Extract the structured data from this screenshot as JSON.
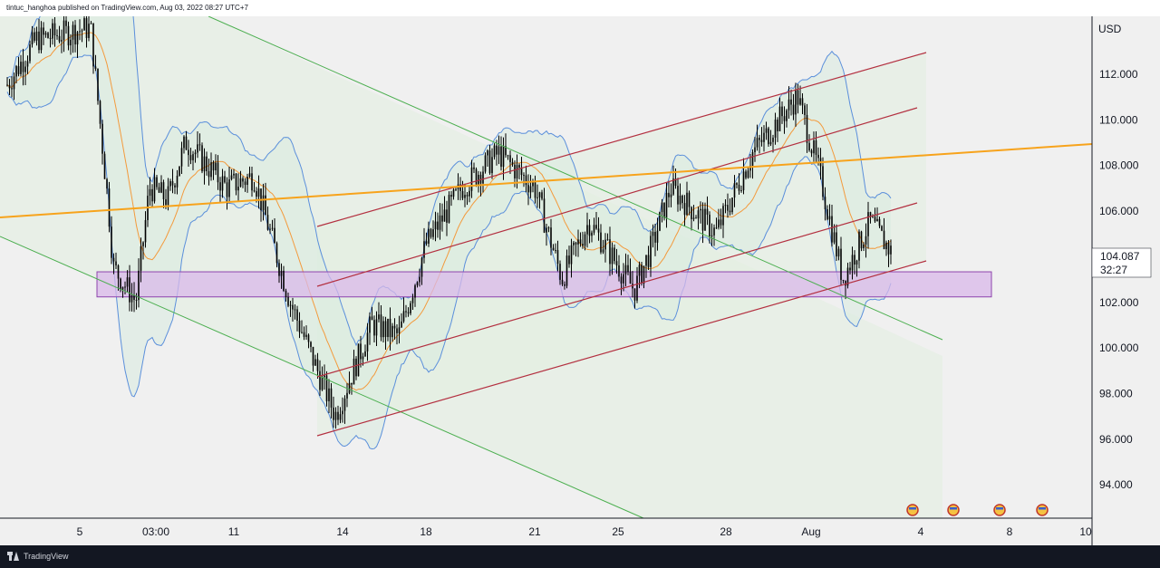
{
  "header": {
    "publisher_line": "tintuc_hanghoa published on TradingView.com, Aug 03, 2022 08:27 UTC+7"
  },
  "footer": {
    "brand": "TradingView"
  },
  "colors": {
    "background": "#f0f0f0",
    "candle": "#000000",
    "bollinger_band": "#5b8fdb",
    "bollinger_fill": "#d9ebe0",
    "moving_average": "#f39a3c",
    "trend_line": "#f7a31c",
    "descending_channel": "#4caf50",
    "ascending_channel": "#b33040",
    "support_zone_fill": "#d9b8ea",
    "support_zone_border": "#8e44ad",
    "last_price_label": "#ffffff"
  },
  "chart_data": {
    "type": "line",
    "title": "",
    "currency": "USD",
    "ylabel": "USD",
    "ylim": [
      92.5,
      114.5
    ],
    "y_ticks": [
      94,
      96,
      98,
      100,
      102,
      104,
      106,
      108,
      110,
      112
    ],
    "y_tick_labels": [
      "94.000",
      "96.000",
      "98.000",
      "100.000",
      "102.000",
      "104.000",
      "106.000",
      "108.000",
      "110.000",
      "112.000"
    ],
    "x_tick_labels": [
      "5",
      "03:00",
      "11",
      "14",
      "18",
      "21",
      "25",
      "28",
      "Aug",
      "4",
      "8",
      "10"
    ],
    "last_price_label": "104.087",
    "countdown_label": "32:27",
    "grid": false,
    "price_path": [
      {
        "x": "Jul 1",
        "y": 111.5
      },
      {
        "x": "Jul 2",
        "y": 113.5
      },
      {
        "x": "Jul 4",
        "y": 114
      },
      {
        "x": "Jul 5",
        "y": 106
      },
      {
        "x": "Jul 6",
        "y": 103.5
      },
      {
        "x": "Jul 7",
        "y": 102
      },
      {
        "x": "Jul 8",
        "y": 107
      },
      {
        "x": "Jul 9",
        "y": 106.5
      },
      {
        "x": "Jul 10",
        "y": 109
      },
      {
        "x": "Jul 11",
        "y": 107
      },
      {
        "x": "Jul 12",
        "y": 107.5
      },
      {
        "x": "Jul 13",
        "y": 102
      },
      {
        "x": "Jul 14",
        "y": 100
      },
      {
        "x": "Jul 15",
        "y": 97
      },
      {
        "x": "Jul 16",
        "y": 101
      },
      {
        "x": "Jul 17",
        "y": 100.5
      },
      {
        "x": "Jul 18",
        "y": 104.5
      },
      {
        "x": "Jul 19",
        "y": 107
      },
      {
        "x": "Jul 20",
        "y": 108.5
      },
      {
        "x": "Jul 21",
        "y": 107
      },
      {
        "x": "Jul 22",
        "y": 103
      },
      {
        "x": "Jul 23",
        "y": 105.5
      },
      {
        "x": "Jul 25",
        "y": 102.5
      },
      {
        "x": "Jul 26",
        "y": 104.5
      },
      {
        "x": "Jul 27",
        "y": 107
      },
      {
        "x": "Jul 28",
        "y": 105
      },
      {
        "x": "Jul 29",
        "y": 108.5
      },
      {
        "x": "Jul 30",
        "y": 111
      },
      {
        "x": "Jul 31",
        "y": 107.5
      },
      {
        "x": "Aug 1",
        "y": 103
      },
      {
        "x": "Aug 2",
        "y": 105.5
      },
      {
        "x": "Aug 3",
        "y": 104.087
      }
    ],
    "annotations": [
      {
        "name": "descending green channel",
        "kind": "parallel-channel"
      },
      {
        "name": "ascending red channel",
        "kind": "parallel-channel"
      },
      {
        "name": "orange trend line",
        "kind": "trend-line"
      },
      {
        "name": "purple support zone",
        "kind": "rectangle",
        "y_range": [
          102.3,
          103.3
        ]
      },
      {
        "name": "economic event markers",
        "kind": "flags",
        "count": 4
      }
    ]
  }
}
